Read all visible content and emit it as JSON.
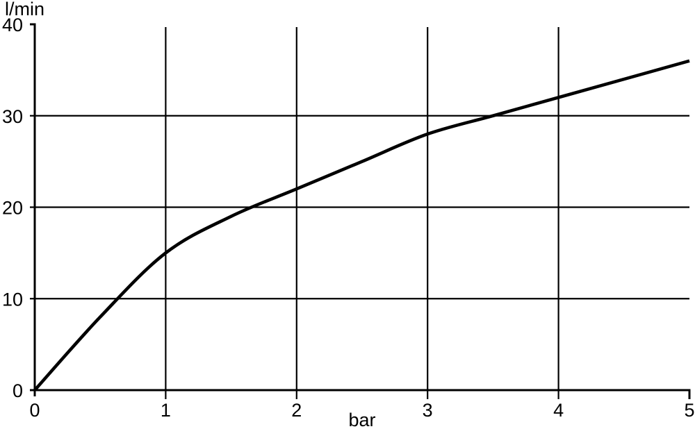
{
  "chart_data": {
    "type": "line",
    "title": "",
    "xlabel": "bar",
    "ylabel": "l/min",
    "x": [
      0,
      0.5,
      1,
      1.5,
      2,
      2.5,
      3,
      3.5,
      4,
      4.5,
      5
    ],
    "y": [
      0,
      8,
      15,
      19,
      22,
      25,
      28,
      30,
      32,
      34,
      36
    ],
    "xlim": [
      0,
      5
    ],
    "ylim": [
      0,
      40
    ],
    "x_ticks": [
      0,
      1,
      2,
      3,
      4,
      5
    ],
    "y_ticks": [
      0,
      10,
      20,
      30,
      40
    ],
    "x_gridlines": [
      1,
      2,
      3,
      4
    ],
    "y_gridlines": [
      10,
      20,
      30
    ],
    "grid": true,
    "legend": false,
    "line_color": "#000000",
    "grid_color": "#000000",
    "axis_color": "#000000",
    "background_color": "#ffffff"
  }
}
